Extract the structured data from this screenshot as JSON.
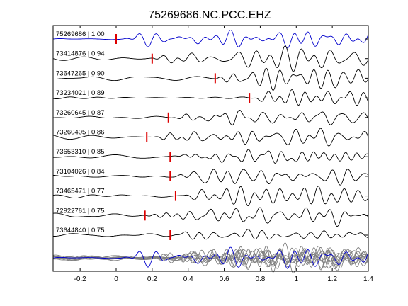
{
  "chart_data": {
    "type": "line",
    "title": "75269686.NC.PCC.EHZ",
    "xlabel": "",
    "ylabel": "",
    "xlim": [
      -0.35,
      1.4
    ],
    "xticks": [
      -0.2,
      0,
      0.2,
      0.4,
      0.6,
      0.8,
      1,
      1.2,
      1.4
    ],
    "xtick_labels": [
      "-0.2",
      "0",
      "0.2",
      "0.4",
      "0.6",
      "0.8",
      "1",
      "1.2",
      "1.4"
    ],
    "grid": false,
    "colors": {
      "reference": "#0000cc",
      "trace": "#000000",
      "pick": "#dd0000",
      "stack": "#808080"
    },
    "traces": [
      {
        "label": "75269686 | 1.00",
        "pick": 0.0,
        "reference": true
      },
      {
        "label": "73414876 | 0.94",
        "pick": 0.2
      },
      {
        "label": "73647265 | 0.90",
        "pick": 0.55
      },
      {
        "label": "73234021 | 0.89",
        "pick": 0.74
      },
      {
        "label": "73260645 | 0.87",
        "pick": 0.29
      },
      {
        "label": "73260405 | 0.86",
        "pick": 0.17
      },
      {
        "label": "73653310 | 0.85",
        "pick": 0.3
      },
      {
        "label": "73104026 | 0.84",
        "pick": 0.3
      },
      {
        "label": "73465471 | 0.77",
        "pick": 0.33
      },
      {
        "label": "72922761 | 0.75",
        "pick": 0.16
      },
      {
        "label": "73644840 | 0.75",
        "pick": 0.3
      }
    ]
  }
}
